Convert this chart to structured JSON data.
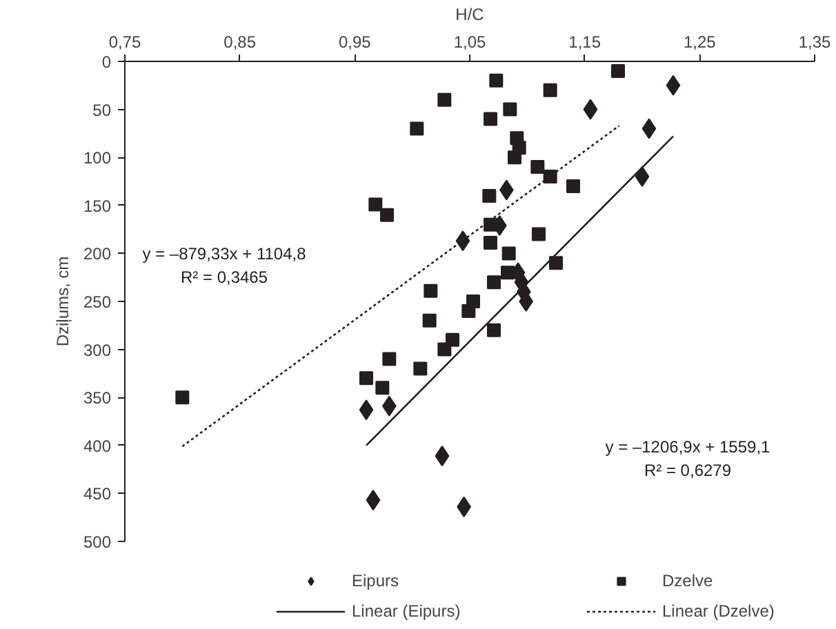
{
  "chart_data": {
    "type": "scatter",
    "xlabel": "H/C",
    "ylabel": "Dziļums, cm",
    "xlim": [
      0.75,
      1.35
    ],
    "xticks": [
      {
        "value": 0.75,
        "label": "0,75"
      },
      {
        "value": 0.85,
        "label": "0,85"
      },
      {
        "value": 0.95,
        "label": "0,95"
      },
      {
        "value": 1.05,
        "label": "1,05"
      },
      {
        "value": 1.15,
        "label": "1,15"
      },
      {
        "value": 1.25,
        "label": "1,25"
      },
      {
        "value": 1.35,
        "label": "1,35"
      }
    ],
    "ylim": [
      500,
      0
    ],
    "yticks": [
      0,
      50,
      100,
      150,
      200,
      250,
      300,
      350,
      400,
      450,
      500
    ],
    "grid": false,
    "legend": "bottom",
    "series": [
      {
        "name": "Eipurs",
        "marker": "diamond",
        "color": "#231f20",
        "x": [
          1.227,
          1.155,
          1.206,
          1.2,
          1.082,
          1.076,
          1.044,
          1.092,
          1.095,
          1.097,
          1.099,
          0.96,
          0.98,
          1.026,
          0.966,
          1.045
        ],
        "values": [
          25,
          50,
          70,
          120,
          134,
          171,
          187,
          220,
          230,
          240,
          250,
          363,
          359,
          411,
          457,
          464
        ]
      },
      {
        "name": "Dzelve",
        "marker": "square",
        "color": "#231f20",
        "x": [
          1.073,
          1.028,
          1.12,
          1.068,
          1.085,
          1.004,
          1.091,
          1.093,
          1.089,
          1.109,
          1.12,
          1.14,
          1.179,
          1.067,
          0.968,
          0.978,
          1.068,
          1.11,
          1.068,
          1.084,
          1.125,
          1.016,
          1.083,
          1.071,
          1.053,
          1.049,
          1.015,
          1.071,
          1.035,
          1.028,
          0.98,
          1.007,
          0.96,
          0.974,
          0.8
        ],
        "values": [
          20,
          40,
          30,
          60,
          50,
          70,
          80,
          90,
          100,
          110,
          120,
          130,
          10,
          140,
          149,
          160,
          170,
          180,
          189,
          200,
          210,
          239,
          220,
          230,
          250,
          260,
          270,
          280,
          290,
          300,
          310,
          320,
          330,
          340,
          350
        ]
      },
      {
        "name": "Linear (Eipurs)",
        "type": "line",
        "line_style": "solid",
        "color": "#231f20",
        "x": [
          0.96,
          1.227
        ],
        "values": [
          400,
          78
        ]
      },
      {
        "name": "Linear (Dzelve)",
        "type": "line",
        "line_style": "dotted",
        "color": "#231f20",
        "x": [
          0.8,
          1.18
        ],
        "values": [
          401,
          67
        ]
      }
    ],
    "annotations": [
      "y = –879,33x + 1104,8\nR² = 0,3465",
      "y = –1206,9x + 1559,1\nR² = 0,6279"
    ]
  }
}
